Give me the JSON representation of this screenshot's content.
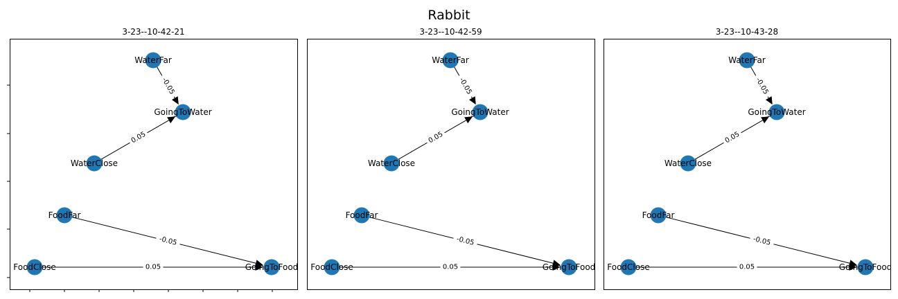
{
  "figure": {
    "title": "Rabbit",
    "panels": [
      {
        "title": "3-23--10-42-21",
        "nodes": [
          {
            "id": "WaterFar",
            "label": "WaterFar"
          },
          {
            "id": "GoingToWater",
            "label": "GoingToWater"
          },
          {
            "id": "WaterClose",
            "label": "WaterClose"
          },
          {
            "id": "FoodFar",
            "label": "FoodFar"
          },
          {
            "id": "FoodClose",
            "label": "FoodClose"
          },
          {
            "id": "GoingToFood",
            "label": "GoingToFood"
          }
        ],
        "edges": [
          {
            "from": "WaterFar",
            "to": "GoingToWater",
            "label": "-0.05"
          },
          {
            "from": "WaterClose",
            "to": "GoingToWater",
            "label": "0.05"
          },
          {
            "from": "FoodFar",
            "to": "GoingToFood",
            "label": "-0.05"
          },
          {
            "from": "FoodClose",
            "to": "GoingToFood",
            "label": "0.05"
          }
        ]
      },
      {
        "title": "3-23--10-42-59",
        "nodes": [
          {
            "id": "WaterFar",
            "label": "WaterFar"
          },
          {
            "id": "GoingToWater",
            "label": "GoingToWater"
          },
          {
            "id": "WaterClose",
            "label": "WaterClose"
          },
          {
            "id": "FoodFar",
            "label": "FoodFar"
          },
          {
            "id": "FoodClose",
            "label": "FoodClose"
          },
          {
            "id": "GoingToFood",
            "label": "GoingToFood"
          }
        ],
        "edges": [
          {
            "from": "WaterFar",
            "to": "GoingToWater",
            "label": "-0.05"
          },
          {
            "from": "WaterClose",
            "to": "GoingToWater",
            "label": "0.05"
          },
          {
            "from": "FoodFar",
            "to": "GoingToFood",
            "label": "-0.05"
          },
          {
            "from": "FoodClose",
            "to": "GoingToFood",
            "label": "0.05"
          }
        ]
      },
      {
        "title": "3-23--10-43-28",
        "nodes": [
          {
            "id": "WaterFar",
            "label": "WaterFar"
          },
          {
            "id": "GoingToWater",
            "label": "GoingToWater"
          },
          {
            "id": "WaterClose",
            "label": "WaterClose"
          },
          {
            "id": "FoodFar",
            "label": "FoodFar"
          },
          {
            "id": "FoodClose",
            "label": "FoodClose"
          },
          {
            "id": "GoingToFood",
            "label": "GoingToFood"
          }
        ],
        "edges": [
          {
            "from": "WaterFar",
            "to": "GoingToWater",
            "label": "-0.05"
          },
          {
            "from": "WaterClose",
            "to": "GoingToWater",
            "label": "0.05"
          },
          {
            "from": "FoodFar",
            "to": "GoingToFood",
            "label": "-0.05"
          },
          {
            "from": "FoodClose",
            "to": "GoingToFood",
            "label": "0.05"
          }
        ]
      }
    ],
    "colors": {
      "node": "#1f77b4",
      "edge": "#000000",
      "axes": "#000000"
    }
  }
}
